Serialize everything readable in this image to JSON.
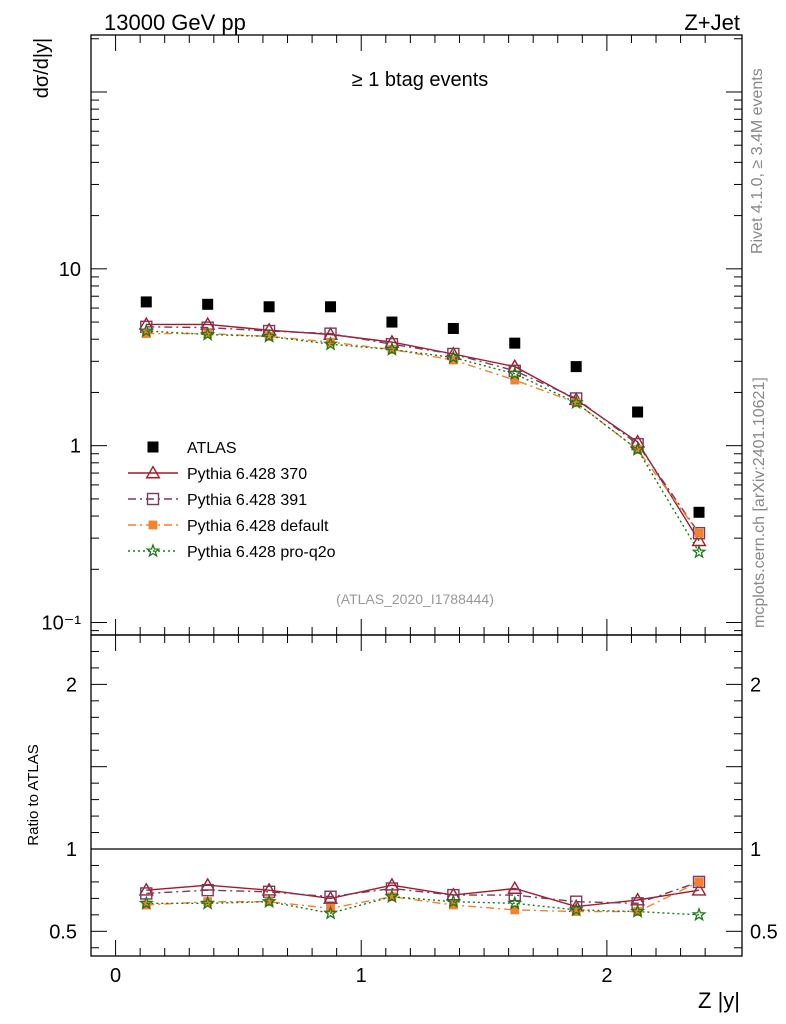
{
  "header": {
    "left": "13000 GeV pp",
    "right": "Z+Jet"
  },
  "side_text": {
    "rivet": "Rivet 4.1.0, ≥ 3.4M events",
    "mcplots": "mcplots.cern.ch [arXiv:2401.10621]"
  },
  "chart_data": [
    {
      "type": "scatter",
      "panel": "main",
      "title": "≥ 1 btag events",
      "analysis_label": "(ATLAS_2020_I1788444)",
      "ylabel": "dσ/d|y|",
      "yscale": "log",
      "ylim": [
        0.085,
        210
      ],
      "xlim": [
        -0.1,
        2.55
      ],
      "ytick_labels": {
        "10": "10",
        "1": "1",
        "0.1": "10⁻¹"
      },
      "x": [
        0.125,
        0.375,
        0.625,
        0.875,
        1.125,
        1.375,
        1.625,
        1.875,
        2.125,
        2.375
      ],
      "series": [
        {
          "name": "ATLAS",
          "marker": "square",
          "color": "#000000",
          "line": "none",
          "values": [
            6.5,
            6.3,
            6.1,
            6.1,
            5.0,
            4.6,
            3.8,
            2.8,
            1.55,
            0.42
          ]
        },
        {
          "name": "Pythia 6.428 370",
          "marker": "triangle",
          "color": "#a01c2c",
          "line": "solid",
          "values": [
            4.85,
            4.85,
            4.5,
            4.25,
            3.85,
            3.3,
            2.8,
            1.82,
            1.05,
            0.29
          ]
        },
        {
          "name": "Pythia 6.428 391",
          "marker": "open-square",
          "color": "#7a3a5c",
          "line": "dashdot",
          "values": [
            4.7,
            4.65,
            4.45,
            4.3,
            3.75,
            3.3,
            2.65,
            1.85,
            1.02,
            0.32
          ]
        },
        {
          "name": "Pythia 6.428 default",
          "marker": "filled-square",
          "color": "#f5812e",
          "line": "dashdot",
          "values": [
            4.3,
            4.3,
            4.15,
            3.85,
            3.5,
            3.05,
            2.35,
            1.75,
            0.95,
            0.32
          ]
        },
        {
          "name": "Pythia 6.428 pro-q2o",
          "marker": "star",
          "color": "#1a7a1a",
          "line": "dotted",
          "values": [
            4.45,
            4.25,
            4.15,
            3.75,
            3.5,
            3.15,
            2.55,
            1.75,
            0.95,
            0.25
          ]
        }
      ]
    },
    {
      "type": "line",
      "panel": "ratio",
      "ylabel": "Ratio to ATLAS",
      "xlabel": "Z |y|",
      "ylim": [
        0.35,
        2.3
      ],
      "xlim": [
        -0.1,
        2.55
      ],
      "xticks": [
        0,
        1,
        2
      ],
      "xtick_labels": [
        "0",
        "1",
        "2"
      ],
      "yticks": [
        0.5,
        1,
        2
      ],
      "ytick_labels": [
        "0.5",
        "1",
        "2"
      ],
      "x": [
        0.125,
        0.375,
        0.625,
        0.875,
        1.125,
        1.375,
        1.625,
        1.875,
        2.125,
        2.375
      ],
      "series": [
        {
          "name": "Pythia 6.428 370",
          "values": [
            0.75,
            0.78,
            0.75,
            0.7,
            0.78,
            0.72,
            0.76,
            0.65,
            0.69,
            0.75
          ]
        },
        {
          "name": "Pythia 6.428 391",
          "values": [
            0.73,
            0.75,
            0.74,
            0.71,
            0.76,
            0.72,
            0.72,
            0.68,
            0.67,
            0.8
          ]
        },
        {
          "name": "Pythia 6.428 default",
          "values": [
            0.66,
            0.68,
            0.68,
            0.64,
            0.71,
            0.66,
            0.63,
            0.62,
            0.62,
            0.8
          ]
        },
        {
          "name": "Pythia 6.428 pro-q2o",
          "values": [
            0.67,
            0.67,
            0.68,
            0.61,
            0.71,
            0.68,
            0.67,
            0.63,
            0.62,
            0.6
          ]
        }
      ]
    }
  ]
}
